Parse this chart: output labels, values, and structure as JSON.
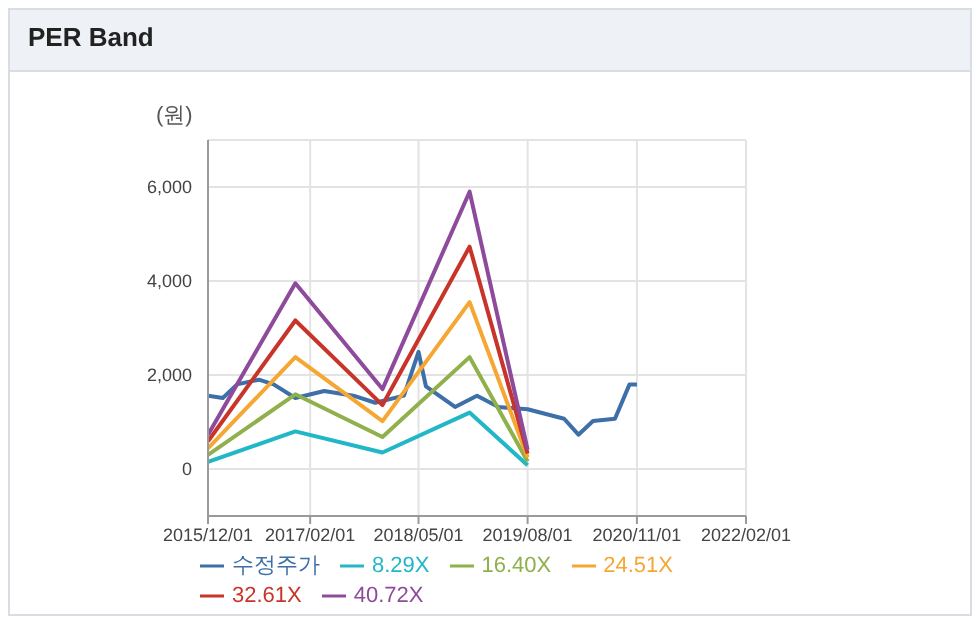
{
  "chart_data": {
    "type": "line",
    "title": "PER Band",
    "ylabel": "(원)",
    "xlim": [
      "2015-12-01",
      "2022-02-01"
    ],
    "xticks": [
      {
        "value": "2015-12-01",
        "label": "2015/12/01"
      },
      {
        "value": "2017-02-01",
        "label": "2017/02/01"
      },
      {
        "value": "2018-05-01",
        "label": "2018/05/01"
      },
      {
        "value": "2019-08-01",
        "label": "2019/08/01"
      },
      {
        "value": "2020-11-01",
        "label": "2020/11/01"
      },
      {
        "value": "2022-02-01",
        "label": "2022/02/01"
      }
    ],
    "ylim": [
      -1000,
      7000
    ],
    "yticks": [
      {
        "value": 0,
        "label": "0"
      },
      {
        "value": 2000,
        "label": "2,000"
      },
      {
        "value": 4000,
        "label": "4,000"
      },
      {
        "value": 6000,
        "label": "6,000"
      }
    ],
    "grid": true,
    "legend": "bottom",
    "line_style": "solid",
    "series": [
      {
        "name": "수정주가",
        "color": "#3d6fa8",
        "x": [
          "2015-12",
          "2016-02",
          "2016-04",
          "2016-07",
          "2016-09",
          "2016-12",
          "2017-04",
          "2017-08",
          "2017-11",
          "2018-03",
          "2018-05",
          "2018-06",
          "2018-10",
          "2019-01",
          "2019-04",
          "2019-08",
          "2020-01",
          "2020-03",
          "2020-05",
          "2020-08",
          "2020-10",
          "2020-11"
        ],
        "values": [
          1560,
          1510,
          1800,
          1900,
          1800,
          1510,
          1660,
          1560,
          1410,
          1560,
          2490,
          1760,
          1320,
          1560,
          1320,
          1270,
          1070,
          730,
          1020,
          1070,
          1800,
          1800
        ]
      },
      {
        "name": "8.29X",
        "color": "#22b7c6",
        "x": [
          "2015-12",
          "2016-12",
          "2017-12",
          "2018-12",
          "2019-08"
        ],
        "values": [
          150,
          800,
          350,
          1200,
          80
        ]
      },
      {
        "name": "16.40X",
        "color": "#8fb04a",
        "x": [
          "2015-12",
          "2016-12",
          "2017-12",
          "2018-12",
          "2019-08"
        ],
        "values": [
          300,
          1590,
          680,
          2380,
          160
        ]
      },
      {
        "name": "24.51X",
        "color": "#f5a733",
        "x": [
          "2015-12",
          "2016-12",
          "2017-12",
          "2018-12",
          "2019-08"
        ],
        "values": [
          440,
          2380,
          1020,
          3550,
          250
        ]
      },
      {
        "name": "32.61X",
        "color": "#c8342a",
        "x": [
          "2015-12",
          "2016-12",
          "2017-12",
          "2018-12",
          "2019-08"
        ],
        "values": [
          590,
          3160,
          1360,
          4730,
          330
        ]
      },
      {
        "name": "40.72X",
        "color": "#8e4a9b",
        "x": [
          "2015-12",
          "2016-12",
          "2017-12",
          "2018-12",
          "2019-08"
        ],
        "values": [
          730,
          3950,
          1700,
          5900,
          410
        ]
      }
    ]
  }
}
